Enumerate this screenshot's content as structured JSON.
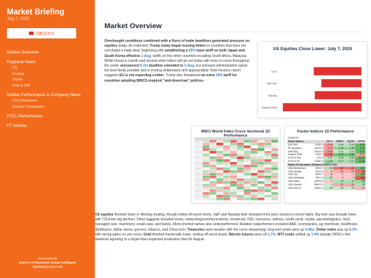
{
  "sidebar": {
    "title": "Market Briefing",
    "date": "July 7, 2025",
    "language_button": "切换至中文",
    "nav": [
      {
        "label": "Market Overview",
        "level": 0
      },
      {
        "label": "Regional News",
        "level": 0
      },
      {
        "label": "US",
        "level": 1
      },
      {
        "label": "Europe",
        "level": 1
      },
      {
        "label": "Japan",
        "level": 1
      },
      {
        "label": "Asia & EM",
        "level": 1
      },
      {
        "label": "Market Performance & Company News",
        "level": 0
      },
      {
        "label": "US Companies",
        "level": 1
      },
      {
        "label": "Europe Companies",
        "level": 1
      },
      {
        "label": "FICC Performance",
        "level": 0
      },
      {
        "label": "FT Articles",
        "level": 0
      }
    ],
    "footer": {
      "line1": "Generated by",
      "line2": "Jason's AI Research Virtual Intelligent",
      "line3": "System (J.A.R.V.I.S)"
    }
  },
  "main": {
    "title": "Market Overview",
    "intro": [
      {
        "t": "Overbought conditions combined with a flurry of trade headlines generated pressure on equities",
        "s": "b"
      },
      {
        "t": " today. As expected, ",
        "s": ""
      },
      {
        "t": "Trump today began issuing letters",
        "s": "b"
      },
      {
        "t": " to countries that have not concluded a trade deal, beginning with ",
        "s": ""
      },
      {
        "t": "establishing a ",
        "s": "b"
      },
      {
        "t": "25%",
        "s": "blue"
      },
      {
        "t": " base tariff on both Japan and South Korea effective ",
        "s": "b"
      },
      {
        "t": "1-Aug",
        "s": "blue"
      },
      {
        "t": ", tariffs on five other countries including South Africa, Malaysia. White House's Leavitt said several other letters will go out today with more to come throughout the week; ",
        "s": ""
      },
      {
        "t": "announced ",
        "s": "b"
      },
      {
        "t": "9-Jul",
        "s": "blue"
      },
      {
        "t": " deadline extended to ",
        "s": "b"
      },
      {
        "t": "1-Aug",
        "s": "blue"
      },
      {
        "t": ", but stressed administration wants the best deals possible and is moving deliberately and appropriately. Note Reuters report suggests ",
        "s": ""
      },
      {
        "t": "EU is not expecting a letter",
        "s": "b"
      },
      {
        "t": ". Trump also threatened ",
        "s": ""
      },
      {
        "t": "an extra ",
        "s": "b"
      },
      {
        "t": "10%",
        "s": "blue"
      },
      {
        "t": " tariff for countries adopting BRICS-inspired \"anti-American\" policies",
        "s": "b"
      },
      {
        "t": ".",
        "s": ""
      }
    ],
    "bottom": [
      {
        "t": "US equities",
        "s": "b"
      },
      {
        "t": " finished lower in Monday trading, though ended off worst levels. S&P and Nasdaq both retreated from prior session's record highs. Big tech was broadly lower with TSLA the big decliner. Other laggards included semis, networking/communications, chemicals, P&C insurance, airlines, credit cards, media, parcels/logistics, food, managed care, machinery, small-caps, and banks. Most-shorted names also underperformed. Relative outperformers included AAD, ecompanies, ag chemicals, healthcare distributors, dollar stores, grocers, tobacco, and China tech. ",
        "s": ""
      },
      {
        "t": "Treasuries",
        "s": "b"
      },
      {
        "t": " were weaker with the curve steepening; long-end yields were up ",
        "s": ""
      },
      {
        "t": "4-5bp",
        "s": "blue"
      },
      {
        "t": ". ",
        "s": ""
      },
      {
        "t": "Dollar index",
        "s": "b"
      },
      {
        "t": " was up ",
        "s": ""
      },
      {
        "t": "0.3%",
        "s": "blue"
      },
      {
        "t": " with strong gains on yen cross. ",
        "s": ""
      },
      {
        "t": "Gold",
        "s": "b"
      },
      {
        "t": " finished fractionally lower, ending off worst levels. ",
        "s": ""
      },
      {
        "t": "Bitcoin futures",
        "s": "b"
      },
      {
        "t": " were off ",
        "s": ""
      },
      {
        "t": "1.7%",
        "s": "blue"
      },
      {
        "t": ". ",
        "s": ""
      },
      {
        "t": "WTI crude",
        "s": "b"
      },
      {
        "t": " settled up ",
        "s": ""
      },
      {
        "t": "1.4%",
        "s": "blue"
      },
      {
        "t": " despite OPEC+ this weekend agreeing to a larger-than-expected production hike for August.",
        "s": ""
      }
    ]
  },
  "cards": {
    "us_equities_title": "US Equities Close Lower: July 7, 2025",
    "msci_title": "MSCI World Index Cross Sectional 1D Performance",
    "factor_title": "Factor Indices 1D Performance"
  },
  "chart_data": [
    {
      "type": "bar",
      "orientation": "horizontal",
      "title": "US Equities Close Lower: July 7, 2025",
      "categories": [
        "Dow",
        "S&P 500",
        "Nasdaq",
        "Russell 2000"
      ],
      "values": [
        -0.94,
        -0.79,
        -0.92,
        -1.55
      ],
      "color": "#e03131"
    },
    {
      "type": "table",
      "title": "Factor Indices 1D Performance",
      "date": "20250707",
      "sections": [
        {
          "header": [
            "Stock Indices",
            "",
            "1D %",
            "%MTD",
            "%QTD",
            "%YTD"
          ],
          "rows": [
            [
              "S&P 500",
              "6230.0",
              "-0.79",
              "0.40",
              "0.40",
              "5.92"
            ],
            [
              "SP Buyback",
              "33187.5",
              "-0.74",
              "1.09",
              "1.09",
              "6.42"
            ],
            [
              "NASDAQ",
              "20412.5",
              "-0.92",
              "0.21",
              "0.21",
              "5.71"
            ],
            [
              "Russell 2000",
              "2214.2",
              "-1.55",
              "1.69",
              "1.69",
              "-0.71"
            ],
            [
              "STOXX 600",
              "419.5",
              "0.31",
              "0.45",
              "0.45",
              "34.53"
            ],
            [
              "STOXX 50",
              "12960.2",
              "1.00",
              "0.77",
              "0.77",
              "11.26"
            ]
          ]
        },
        {
          "header": [
            "Factor Performance Relative to MSCI USA",
            "",
            "",
            "",
            "",
            ""
          ],
          "rows": [
            [
              "USA Momentum",
              "6009.2",
              "30",
              "-87",
              "-87",
              "642"
            ],
            [
              "USA Quality",
              "6247.8",
              "-6",
              "-30",
              "-30",
              "-95"
            ],
            [
              "USA Cyc",
              "6022.7",
              "-6",
              "-1",
              "-1",
              "129"
            ],
            [
              "USA Defensive",
              "2921.3",
              "27",
              "-3",
              "-3",
              "-462"
            ],
            [
              "USA Value",
              "15079.6",
              "-2",
              "34",
              "34",
              "59"
            ],
            [
              "USA Growth",
              "28697.4",
              "4",
              "-31",
              "-31",
              "33"
            ],
            [
              "USA Size lit",
              "18442.1",
              "13",
              "10",
              "10",
              "-21"
            ]
          ]
        }
      ]
    },
    {
      "type": "heatmap",
      "title": "MSCI World Index Cross Sectional 1D Performance",
      "rows": 22,
      "columns": 11,
      "values": [
        [
          0.4,
          -0.8,
          -0.2,
          0.6,
          -1.0,
          -0.3,
          0.9,
          -0.6,
          0.2,
          -0.4,
          1.1
        ],
        [
          -0.5,
          0.3,
          -1.2,
          0.1,
          0.7,
          -0.9,
          0.2,
          0.5,
          -0.7,
          0.8,
          -0.1
        ],
        [
          1.0,
          -0.2,
          0.4,
          -0.6,
          0.3,
          0.8,
          -1.1,
          0.0,
          0.6,
          -0.3,
          0.2
        ],
        [
          -0.9,
          0.6,
          0.1,
          -0.4,
          -0.2,
          0.5,
          0.3,
          -0.8,
          1.2,
          0.0,
          -0.6
        ],
        [
          0.2,
          -1.1,
          0.7,
          0.3,
          -0.5,
          -0.1,
          0.6,
          0.9,
          -0.2,
          -0.7,
          0.4
        ],
        [
          0.6,
          0.0,
          -0.3,
          1.0,
          -0.8,
          0.4,
          -0.4,
          0.2,
          0.1,
          0.5,
          -0.9
        ],
        [
          -0.2,
          0.9,
          -0.6,
          -0.1,
          0.5,
          -1.2,
          0.8,
          -0.3,
          0.4,
          0.2,
          0.7
        ],
        [
          0.3,
          -0.4,
          1.1,
          -0.9,
          0.0,
          0.6,
          -0.2,
          0.7,
          -0.5,
          -1.0,
          0.1
        ],
        [
          -0.7,
          0.2,
          0.5,
          0.4,
          -1.1,
          0.3,
          0.1,
          -0.6,
          0.9,
          0.6,
          -0.4
        ],
        [
          0.8,
          -0.6,
          -0.1,
          0.2,
          0.6,
          -0.4,
          -0.9,
          1.0,
          -0.3,
          0.1,
          0.5
        ],
        [
          -0.1,
          0.5,
          -0.8,
          0.7,
          0.2,
          0.9,
          -0.5,
          -0.2,
          0.3,
          -0.6,
          1.0
        ],
        [
          0.5,
          -0.3,
          0.2,
          -1.0,
          0.8,
          -0.7,
          0.4,
          0.1,
          -0.9,
          0.7,
          -0.2
        ],
        [
          -0.4,
          1.0,
          -0.5,
          0.3,
          -0.3,
          0.1,
          0.7,
          -1.1,
          0.5,
          -0.2,
          0.6
        ],
        [
          0.9,
          -0.9,
          0.3,
          0.6,
          -0.6,
          0.2,
          -0.1,
          0.4,
          -0.8,
          1.1,
          -0.5
        ],
        [
          -0.6,
          0.1,
          0.9,
          -0.3,
          0.4,
          -0.8,
          0.5,
          0.6,
          0.0,
          -0.4,
          0.3
        ],
        [
          0.1,
          0.7,
          -0.7,
          0.8,
          -0.9,
          0.5,
          -0.6,
          -0.4,
          1.0,
          0.3,
          -1.0
        ],
        [
          0.7,
          -0.5,
          0.0,
          -0.2,
          1.0,
          -0.6,
          0.2,
          0.8,
          -0.1,
          -0.8,
          0.4
        ],
        [
          -0.3,
          0.4,
          0.6,
          -0.7,
          -0.1,
          1.0,
          -0.3,
          0.0,
          0.7,
          0.4,
          -0.7
        ],
        [
          0.2,
          -0.7,
          -0.4,
          0.5,
          0.3,
          -0.2,
          1.1,
          -0.9,
          -0.6,
          0.9,
          0.1
        ],
        [
          -0.8,
          0.8,
          0.2,
          -0.5,
          0.6,
          0.0,
          -0.7,
          0.3,
          0.4,
          -0.1,
          0.9
        ],
        [
          0.5,
          -0.1,
          -0.9,
          0.9,
          -0.4,
          0.7,
          0.3,
          -0.5,
          0.2,
          0.6,
          -0.3
        ],
        [
          -0.2,
          0.3,
          0.8,
          -0.8,
          0.1,
          -0.5,
          0.6,
          0.9,
          -1.0,
          0.0,
          0.5
        ]
      ]
    }
  ],
  "colors": {
    "sidebar_bg": "#f26a1b",
    "accent_blue": "#2f7bd1",
    "negative": "#e03131",
    "positive": "#2fa84f"
  }
}
